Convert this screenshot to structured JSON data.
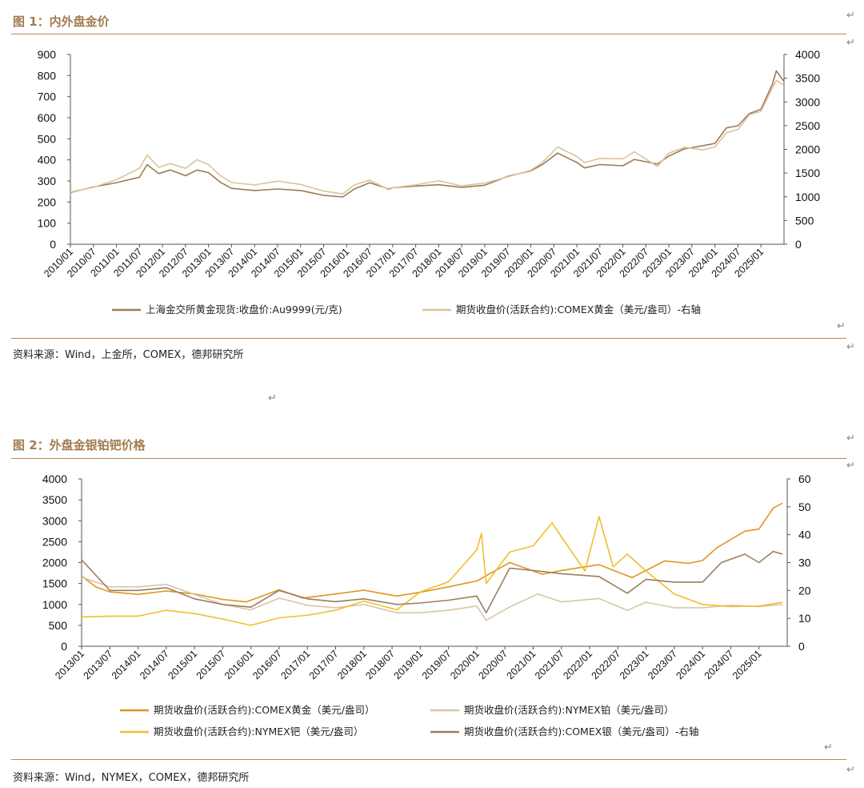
{
  "figure1": {
    "caption": "图 1：内外盘金价",
    "source": "资料来源：Wind，上金所，COMEX，德邦研究所"
  },
  "figure2": {
    "caption": "图 2：外盘金银铂钯价格",
    "source": "资料来源：Wind，NYMEX，COMEX，德邦研究所"
  },
  "colors": {
    "accent": "#a37b52",
    "rule": "#b48a60",
    "sge_gold": "#9c7b5a",
    "comex_gold_fig1": "#dcc39b",
    "comex_gold_fig2": "#e0941e",
    "nymex_platinum": "#d9c6a8",
    "nymex_palladium": "#f0be2d",
    "comex_silver": "#9a7e5e"
  },
  "chart_data": [
    {
      "type": "line",
      "title": "",
      "x_ticks": [
        "2010/01",
        "2010/07",
        "2011/01",
        "2011/07",
        "2012/01",
        "2012/07",
        "2013/01",
        "2013/07",
        "2014/01",
        "2014/07",
        "2015/01",
        "2015/07",
        "2016/01",
        "2016/07",
        "2017/01",
        "2017/07",
        "2018/01",
        "2018/07",
        "2019/01",
        "2019/07",
        "2020/01",
        "2020/07",
        "2021/01",
        "2021/07",
        "2022/01",
        "2022/07",
        "2023/01",
        "2023/07",
        "2024/01",
        "2024/07",
        "2025/01"
      ],
      "x_range": [
        "2010/01",
        "2025/07"
      ],
      "y_left": {
        "min": 0,
        "max": 900,
        "ticks": [
          0,
          100,
          200,
          300,
          400,
          500,
          600,
          700,
          800,
          900
        ]
      },
      "y_right": {
        "min": 0,
        "max": 4000,
        "ticks": [
          0,
          500,
          1000,
          1500,
          2000,
          2500,
          3000,
          3500,
          4000
        ]
      },
      "grid": false,
      "legend_position": "bottom",
      "series": [
        {
          "name": "上海金交所黄金现货:收盘价:Au9999(元/克)",
          "axis": "left",
          "color_key": "sge_gold",
          "points": [
            [
              "2010/01",
              245
            ],
            [
              "2010/07",
              272
            ],
            [
              "2011/01",
              292
            ],
            [
              "2011/07",
              318
            ],
            [
              "2011/09",
              378
            ],
            [
              "2011/12",
              335
            ],
            [
              "2012/03",
              352
            ],
            [
              "2012/07",
              325
            ],
            [
              "2012/10",
              352
            ],
            [
              "2013/01",
              340
            ],
            [
              "2013/04",
              295
            ],
            [
              "2013/07",
              265
            ],
            [
              "2014/01",
              255
            ],
            [
              "2014/07",
              262
            ],
            [
              "2015/01",
              255
            ],
            [
              "2015/07",
              232
            ],
            [
              "2015/12",
              224
            ],
            [
              "2016/03",
              262
            ],
            [
              "2016/07",
              292
            ],
            [
              "2016/12",
              262
            ],
            [
              "2017/01",
              268
            ],
            [
              "2017/07",
              276
            ],
            [
              "2018/01",
              282
            ],
            [
              "2018/07",
              270
            ],
            [
              "2019/01",
              280
            ],
            [
              "2019/07",
              322
            ],
            [
              "2020/01",
              348
            ],
            [
              "2020/04",
              378
            ],
            [
              "2020/08",
              432
            ],
            [
              "2021/01",
              388
            ],
            [
              "2021/03",
              362
            ],
            [
              "2021/07",
              378
            ],
            [
              "2022/01",
              372
            ],
            [
              "2022/04",
              402
            ],
            [
              "2022/10",
              380
            ],
            [
              "2023/01",
              418
            ],
            [
              "2023/05",
              452
            ],
            [
              "2023/10",
              468
            ],
            [
              "2024/01",
              478
            ],
            [
              "2024/04",
              552
            ],
            [
              "2024/07",
              562
            ],
            [
              "2024/10",
              620
            ],
            [
              "2025/01",
              640
            ],
            [
              "2025/04",
              760
            ],
            [
              "2025/05",
              822
            ],
            [
              "2025/07",
              772
            ]
          ]
        },
        {
          "name": "期货收盘价(活跃合约):COMEX黄金（美元/盎司）-右轴",
          "axis": "right",
          "color_key": "comex_gold_fig1",
          "points": [
            [
              "2010/01",
              1100
            ],
            [
              "2010/07",
              1200
            ],
            [
              "2011/01",
              1360
            ],
            [
              "2011/07",
              1600
            ],
            [
              "2011/09",
              1880
            ],
            [
              "2011/12",
              1620
            ],
            [
              "2012/03",
              1700
            ],
            [
              "2012/07",
              1600
            ],
            [
              "2012/10",
              1780
            ],
            [
              "2013/01",
              1680
            ],
            [
              "2013/04",
              1450
            ],
            [
              "2013/07",
              1300
            ],
            [
              "2014/01",
              1250
            ],
            [
              "2014/07",
              1330
            ],
            [
              "2015/01",
              1260
            ],
            [
              "2015/07",
              1120
            ],
            [
              "2015/12",
              1060
            ],
            [
              "2016/03",
              1250
            ],
            [
              "2016/07",
              1350
            ],
            [
              "2016/12",
              1150
            ],
            [
              "2017/01",
              1190
            ],
            [
              "2017/07",
              1250
            ],
            [
              "2018/01",
              1340
            ],
            [
              "2018/07",
              1230
            ],
            [
              "2019/01",
              1290
            ],
            [
              "2019/07",
              1420
            ],
            [
              "2020/01",
              1560
            ],
            [
              "2020/04",
              1720
            ],
            [
              "2020/08",
              2050
            ],
            [
              "2021/01",
              1850
            ],
            [
              "2021/03",
              1720
            ],
            [
              "2021/07",
              1810
            ],
            [
              "2022/01",
              1800
            ],
            [
              "2022/04",
              1950
            ],
            [
              "2022/10",
              1640
            ],
            [
              "2023/01",
              1920
            ],
            [
              "2023/05",
              2040
            ],
            [
              "2023/10",
              1990
            ],
            [
              "2024/01",
              2050
            ],
            [
              "2024/04",
              2350
            ],
            [
              "2024/07",
              2420
            ],
            [
              "2024/10",
              2730
            ],
            [
              "2025/01",
              2800
            ],
            [
              "2025/04",
              3300
            ],
            [
              "2025/05",
              3450
            ],
            [
              "2025/07",
              3350
            ]
          ]
        }
      ]
    },
    {
      "type": "line",
      "title": "",
      "x_ticks": [
        "2013/01",
        "2013/07",
        "2014/01",
        "2014/07",
        "2015/01",
        "2015/07",
        "2016/01",
        "2016/07",
        "2017/01",
        "2017/07",
        "2018/01",
        "2018/07",
        "2019/01",
        "2019/07",
        "2020/01",
        "2020/07",
        "2021/01",
        "2021/07",
        "2022/01",
        "2022/07",
        "2023/01",
        "2023/07",
        "2024/01",
        "2024/07",
        "2025/01"
      ],
      "x_range": [
        "2013/01",
        "2025/07"
      ],
      "y_left": {
        "min": 0,
        "max": 4000,
        "ticks": [
          0,
          500,
          1000,
          1500,
          2000,
          2500,
          3000,
          3500,
          4000
        ]
      },
      "y_right": {
        "min": 0,
        "max": 60,
        "ticks": [
          0,
          10,
          20,
          30,
          40,
          50,
          60
        ]
      },
      "grid": false,
      "legend_position": "bottom",
      "series": [
        {
          "name": "期货收盘价(活跃合约):COMEX黄金（美元/盎司）",
          "axis": "left",
          "color_key": "comex_gold_fig2",
          "points": [
            [
              "2013/01",
              1680
            ],
            [
              "2013/04",
              1420
            ],
            [
              "2013/07",
              1300
            ],
            [
              "2014/01",
              1240
            ],
            [
              "2014/07",
              1320
            ],
            [
              "2015/01",
              1250
            ],
            [
              "2015/07",
              1120
            ],
            [
              "2015/12",
              1060
            ],
            [
              "2016/07",
              1350
            ],
            [
              "2016/12",
              1150
            ],
            [
              "2017/07",
              1250
            ],
            [
              "2018/01",
              1340
            ],
            [
              "2018/08",
              1200
            ],
            [
              "2019/01",
              1290
            ],
            [
              "2019/07",
              1420
            ],
            [
              "2020/01",
              1560
            ],
            [
              "2020/08",
              2000
            ],
            [
              "2021/03",
              1720
            ],
            [
              "2021/07",
              1810
            ],
            [
              "2022/03",
              1950
            ],
            [
              "2022/10",
              1640
            ],
            [
              "2023/05",
              2040
            ],
            [
              "2023/10",
              1980
            ],
            [
              "2024/01",
              2050
            ],
            [
              "2024/04",
              2350
            ],
            [
              "2024/10",
              2750
            ],
            [
              "2025/01",
              2800
            ],
            [
              "2025/04",
              3300
            ],
            [
              "2025/06",
              3420
            ]
          ]
        },
        {
          "name": "期货收盘价(活跃合约):NYMEX铂（美元/盎司）",
          "axis": "left",
          "color_key": "nymex_platinum",
          "points": [
            [
              "2013/01",
              1650
            ],
            [
              "2013/07",
              1420
            ],
            [
              "2014/01",
              1420
            ],
            [
              "2014/07",
              1480
            ],
            [
              "2015/01",
              1240
            ],
            [
              "2015/07",
              1000
            ],
            [
              "2016/01",
              870
            ],
            [
              "2016/07",
              1150
            ],
            [
              "2017/01",
              980
            ],
            [
              "2017/07",
              920
            ],
            [
              "2018/01",
              1000
            ],
            [
              "2018/08",
              800
            ],
            [
              "2019/01",
              800
            ],
            [
              "2019/07",
              860
            ],
            [
              "2020/01",
              960
            ],
            [
              "2020/03",
              620
            ],
            [
              "2020/08",
              940
            ],
            [
              "2021/02",
              1250
            ],
            [
              "2021/07",
              1060
            ],
            [
              "2022/03",
              1140
            ],
            [
              "2022/09",
              860
            ],
            [
              "2023/01",
              1050
            ],
            [
              "2023/07",
              920
            ],
            [
              "2024/01",
              920
            ],
            [
              "2024/07",
              980
            ],
            [
              "2025/01",
              950
            ],
            [
              "2025/06",
              1000
            ]
          ]
        },
        {
          "name": "期货收盘价(活跃合约):NYMEX钯（美元/盎司）",
          "axis": "left",
          "color_key": "nymex_palladium",
          "points": [
            [
              "2013/01",
              700
            ],
            [
              "2013/07",
              720
            ],
            [
              "2014/01",
              720
            ],
            [
              "2014/07",
              860
            ],
            [
              "2015/01",
              780
            ],
            [
              "2015/07",
              650
            ],
            [
              "2016/01",
              500
            ],
            [
              "2016/07",
              680
            ],
            [
              "2017/01",
              740
            ],
            [
              "2017/07",
              860
            ],
            [
              "2018/01",
              1080
            ],
            [
              "2018/08",
              870
            ],
            [
              "2019/01",
              1300
            ],
            [
              "2019/07",
              1540
            ],
            [
              "2020/01",
              2300
            ],
            [
              "2020/02",
              2700
            ],
            [
              "2020/03",
              1500
            ],
            [
              "2020/08",
              2250
            ],
            [
              "2021/01",
              2400
            ],
            [
              "2021/05",
              2950
            ],
            [
              "2021/08",
              2450
            ],
            [
              "2021/12",
              1800
            ],
            [
              "2022/03",
              3100
            ],
            [
              "2022/06",
              1900
            ],
            [
              "2022/09",
              2200
            ],
            [
              "2023/01",
              1800
            ],
            [
              "2023/07",
              1250
            ],
            [
              "2024/01",
              1000
            ],
            [
              "2024/07",
              950
            ],
            [
              "2025/01",
              960
            ],
            [
              "2025/06",
              1050
            ]
          ]
        },
        {
          "name": "期货收盘价(活跃合约):COMEX银（美元/盎司）-右轴",
          "axis": "right",
          "color_key": "comex_silver",
          "points": [
            [
              "2013/01",
              31
            ],
            [
              "2013/07",
              20
            ],
            [
              "2014/01",
              20
            ],
            [
              "2014/07",
              21
            ],
            [
              "2015/01",
              17
            ],
            [
              "2015/07",
              15
            ],
            [
              "2016/01",
              14
            ],
            [
              "2016/07",
              20
            ],
            [
              "2017/01",
              17
            ],
            [
              "2017/07",
              16
            ],
            [
              "2018/01",
              17
            ],
            [
              "2018/08",
              15
            ],
            [
              "2019/01",
              15.5
            ],
            [
              "2019/07",
              16.5
            ],
            [
              "2020/01",
              18
            ],
            [
              "2020/03",
              12
            ],
            [
              "2020/08",
              28
            ],
            [
              "2021/02",
              27
            ],
            [
              "2021/07",
              26
            ],
            [
              "2022/03",
              25
            ],
            [
              "2022/09",
              19
            ],
            [
              "2023/01",
              24
            ],
            [
              "2023/07",
              23
            ],
            [
              "2024/01",
              23
            ],
            [
              "2024/05",
              30
            ],
            [
              "2024/10",
              33
            ],
            [
              "2025/01",
              30
            ],
            [
              "2025/04",
              34
            ],
            [
              "2025/06",
              33
            ]
          ]
        }
      ]
    }
  ]
}
